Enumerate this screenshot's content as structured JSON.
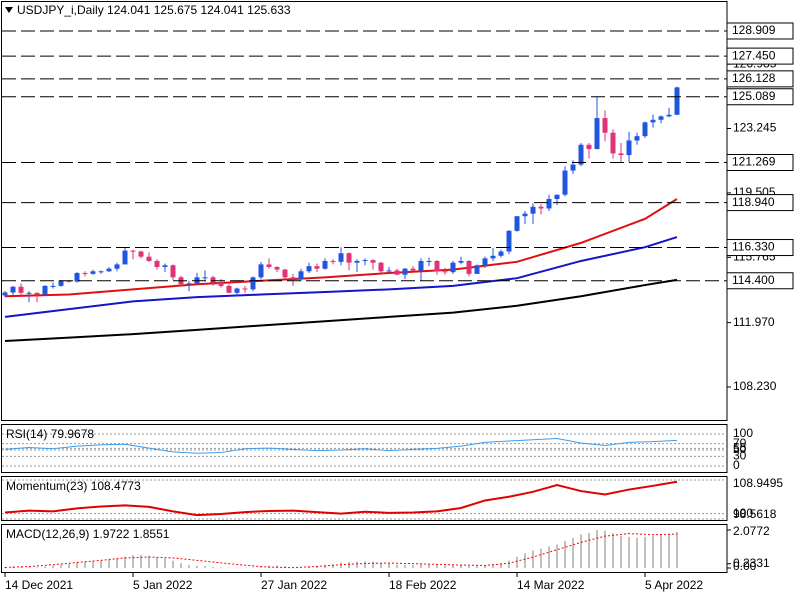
{
  "chart_data": [
    {
      "type": "candlestick",
      "title": "USDJPY_i,Daily  124.041 125.675 124.041 125.633",
      "categories": [
        "14 Dec 2021",
        null,
        null,
        null,
        null,
        null,
        null,
        null,
        null,
        null,
        null,
        null,
        null,
        null,
        null,
        null,
        "5 Jan 2022",
        null,
        null,
        null,
        null,
        null,
        null,
        null,
        null,
        null,
        null,
        null,
        null,
        null,
        null,
        null,
        "27 Jan 2022",
        null,
        null,
        null,
        null,
        null,
        null,
        null,
        null,
        null,
        null,
        null,
        null,
        null,
        null,
        null,
        "18 Feb 2022",
        null,
        null,
        null,
        null,
        null,
        null,
        null,
        null,
        null,
        null,
        null,
        null,
        null,
        null,
        null,
        "14 Mar 2022",
        null,
        null,
        null,
        null,
        null,
        null,
        null,
        null,
        null,
        null,
        null,
        null,
        null,
        null,
        null,
        "5 Apr 2022",
        null,
        null,
        null,
        null
      ],
      "open": [
        113.55,
        113.72,
        114.05,
        113.7,
        113.7,
        113.6,
        114.1,
        114.1,
        114.4,
        114.35,
        114.85,
        114.8,
        114.95,
        114.95,
        115.1,
        115.35,
        116.15,
        116.1,
        115.8,
        115.55,
        115.2,
        115.3,
        114.6,
        114.2,
        114.25,
        114.6,
        114.6,
        114.3,
        114.1,
        113.7,
        113.95,
        113.9,
        114.6,
        115.35,
        115.2,
        115.05,
        114.6,
        114.5,
        114.95,
        115.25,
        115.1,
        115.55,
        115.5,
        116.0,
        115.45,
        115.55,
        115.6,
        115.45,
        114.95,
        115.0,
        114.75,
        115.1,
        115.0,
        115.55,
        115.55,
        114.95,
        114.9,
        115.45,
        115.55,
        114.8,
        115.3,
        115.7,
        115.85,
        116.1,
        117.3,
        118.15,
        118.3,
        118.7,
        118.6,
        119.15,
        119.4,
        120.8,
        121.15,
        122.3,
        122.05,
        123.85,
        123.0,
        121.8,
        121.7,
        122.55,
        122.8,
        123.6,
        123.75,
        123.95,
        124.041
      ],
      "high": [
        113.8,
        114.1,
        114.25,
        113.8,
        113.72,
        114.15,
        114.3,
        114.45,
        114.45,
        114.9,
        114.95,
        115.05,
        115.0,
        115.2,
        115.45,
        116.35,
        116.2,
        116.15,
        116.05,
        115.65,
        115.4,
        115.35,
        114.7,
        114.4,
        114.85,
        115.0,
        114.7,
        114.5,
        114.2,
        114.0,
        114.1,
        114.65,
        115.5,
        115.7,
        115.25,
        115.1,
        114.8,
        115.1,
        115.45,
        115.4,
        115.7,
        115.65,
        116.35,
        116.05,
        115.65,
        115.7,
        115.65,
        115.5,
        115.2,
        115.1,
        115.15,
        115.25,
        115.7,
        115.75,
        115.6,
        115.15,
        115.55,
        115.8,
        115.6,
        115.35,
        115.8,
        116.3,
        116.2,
        117.35,
        118.15,
        118.45,
        118.9,
        118.85,
        119.4,
        119.4,
        121.05,
        121.4,
        122.4,
        122.4,
        125.089,
        124.3,
        123.2,
        122.4,
        123.05,
        123.0,
        123.65,
        124.05,
        124.0,
        124.45,
        125.675
      ],
      "low": [
        113.45,
        113.55,
        113.55,
        113.15,
        113.15,
        113.55,
        113.95,
        114.05,
        114.3,
        114.3,
        114.65,
        114.75,
        114.8,
        114.9,
        114.95,
        115.35,
        115.65,
        115.7,
        115.5,
        115.05,
        114.9,
        114.45,
        114.1,
        113.8,
        114.2,
        114.4,
        114.1,
        114.0,
        113.7,
        113.5,
        113.7,
        113.8,
        114.5,
        115.1,
        114.9,
        114.5,
        114.1,
        114.4,
        114.85,
        114.9,
        115.05,
        115.35,
        115.3,
        115.0,
        114.9,
        115.3,
        115.05,
        114.85,
        114.85,
        114.75,
        114.5,
        114.95,
        114.4,
        115.25,
        114.75,
        114.75,
        114.8,
        115.35,
        114.65,
        114.8,
        115.15,
        115.55,
        115.75,
        115.95,
        117.25,
        117.7,
        117.7,
        118.25,
        118.45,
        118.8,
        119.3,
        120.6,
        121.05,
        121.5,
        122.05,
        122.5,
        121.5,
        121.269,
        121.3,
        122.3,
        122.7,
        123.3,
        123.55,
        123.9,
        124.041
      ],
      "close": [
        113.72,
        114.05,
        113.7,
        113.7,
        113.6,
        114.1,
        114.1,
        114.4,
        114.35,
        114.85,
        114.8,
        114.95,
        114.95,
        115.1,
        115.35,
        116.15,
        116.1,
        115.8,
        115.55,
        115.2,
        115.3,
        114.6,
        114.2,
        114.25,
        114.6,
        114.6,
        114.3,
        114.1,
        113.7,
        113.95,
        113.9,
        114.6,
        115.35,
        115.2,
        115.05,
        114.6,
        114.5,
        114.95,
        115.25,
        115.1,
        115.55,
        115.5,
        116.0,
        115.45,
        115.55,
        115.6,
        115.45,
        114.95,
        115.0,
        114.75,
        115.1,
        115.0,
        115.55,
        115.55,
        114.95,
        114.9,
        115.45,
        115.55,
        114.8,
        115.3,
        115.7,
        115.85,
        116.1,
        117.3,
        118.15,
        118.3,
        118.7,
        118.6,
        119.15,
        119.4,
        120.8,
        121.15,
        122.3,
        122.05,
        123.85,
        123.0,
        121.8,
        121.7,
        122.55,
        122.8,
        123.6,
        123.75,
        123.95,
        124.041,
        125.633
      ],
      "up_color": "#1f55e0",
      "down_color": "#e0317a",
      "ylim": [
        106.312,
        130.535
      ],
      "yticks": [
        126.985,
        123.245,
        119.505,
        115.765,
        {
          "value": 111.97,
          "label": "111.970"
        },
        {
          "value": 108.23,
          "label": "108.230"
        }
      ],
      "levels": [
        128.909,
        {
          "value": 127.45,
          "label": "127.450"
        },
        126.128,
        125.089,
        121.269,
        {
          "value": 118.94,
          "label": "118.940"
        },
        {
          "value": 116.33,
          "label": "116.330"
        },
        {
          "value": 114.4,
          "label": "114.400"
        }
      ],
      "lines": [
        {
          "color": "#e01010",
          "x": [
            0,
            8,
            16,
            24,
            32,
            40,
            48,
            56,
            64,
            72,
            80,
            84
          ],
          "values": [
            113.5,
            113.6,
            113.9,
            114.2,
            114.4,
            114.6,
            114.85,
            115.05,
            115.5,
            116.6,
            118.0,
            119.15
          ]
        },
        {
          "color": "#1414c8",
          "x": [
            0,
            8,
            16,
            24,
            32,
            40,
            48,
            56,
            64,
            72,
            80,
            84
          ],
          "values": [
            112.3,
            112.75,
            113.2,
            113.45,
            113.6,
            113.75,
            113.9,
            114.1,
            114.55,
            115.55,
            116.35,
            116.94
          ]
        },
        {
          "color": "#000000",
          "x": [
            0,
            8,
            16,
            24,
            32,
            40,
            48,
            56,
            64,
            72,
            80,
            84
          ],
          "values": [
            110.9,
            111.1,
            111.3,
            111.55,
            111.8,
            112.05,
            112.3,
            112.55,
            112.95,
            113.5,
            114.15,
            114.45
          ]
        }
      ]
    },
    {
      "type": "line",
      "title": "RSI(14) 79.9678",
      "color": "#3d9be9",
      "x": [
        0,
        3,
        6,
        9,
        12,
        15,
        18,
        21,
        24,
        27,
        30,
        33,
        36,
        39,
        42,
        45,
        48,
        51,
        54,
        57,
        60,
        63,
        66,
        69,
        72,
        75,
        78,
        81,
        84
      ],
      "values": [
        52,
        58,
        54,
        62,
        66,
        68,
        56,
        44,
        40,
        42,
        54,
        56,
        52,
        48,
        50,
        54,
        48,
        52,
        55,
        62,
        74,
        78,
        82,
        86,
        72,
        64,
        74,
        76,
        79.9678
      ],
      "ylim": [
        0,
        100
      ],
      "yticks": [
        0,
        30,
        50,
        55,
        70,
        100
      ],
      "grid": true
    },
    {
      "type": "line",
      "title": "Momentum(23) 108.4773",
      "color": "#e00000",
      "x": [
        0,
        3,
        6,
        9,
        12,
        15,
        18,
        21,
        24,
        27,
        30,
        33,
        36,
        39,
        42,
        45,
        48,
        51,
        54,
        57,
        60,
        63,
        66,
        69,
        72,
        75,
        78,
        81,
        84
      ],
      "values": [
        100.3,
        100.8,
        100.6,
        101.4,
        101.9,
        102.2,
        101.8,
        100.6,
        99.6,
        99.9,
        100.4,
        100.7,
        100.8,
        100.4,
        100,
        100.5,
        100.2,
        100.3,
        100.6,
        101.5,
        103.5,
        104.5,
        105.8,
        107.6,
        106,
        105.1,
        106.4,
        107.4,
        108.4773
      ],
      "ylim": [
        98.5618,
        108.9495
      ],
      "yticks": [
        98.5618,
        100,
        108.9495
      ],
      "grid": true
    },
    {
      "type": "macd",
      "title": "MACD(12,26,9) 1.9722 1.8551",
      "color": "#c0c0c0",
      "values": [
        0.05,
        0.08,
        0.07,
        0.05,
        0.04,
        0.08,
        0.12,
        0.18,
        0.22,
        0.3,
        0.34,
        0.38,
        0.4,
        0.44,
        0.5,
        0.62,
        0.7,
        0.7,
        0.66,
        0.58,
        0.52,
        0.4,
        0.26,
        0.16,
        0.12,
        0.1,
        0.05,
        0.03,
        0.02,
        0.01,
        0.01,
        0.02,
        0.05,
        0.12,
        0.14,
        0.1,
        0.05,
        0.06,
        0.1,
        0.12,
        0.18,
        0.22,
        0.3,
        0.32,
        0.34,
        0.35,
        0.34,
        0.28,
        0.24,
        0.18,
        0.18,
        0.16,
        0.2,
        0.22,
        0.16,
        0.12,
        0.14,
        0.16,
        0.1,
        0.1,
        0.14,
        0.2,
        0.26,
        0.4,
        0.62,
        0.8,
        0.96,
        1.06,
        1.18,
        1.28,
        1.48,
        1.64,
        1.84,
        1.92,
        2.0772,
        2.04,
        1.9,
        1.76,
        1.7,
        1.66,
        1.7,
        1.76,
        1.82,
        1.88,
        1.9722
      ],
      "signal": {
        "color": "#ff0000",
        "x": [
          0,
          3,
          6,
          9,
          12,
          15,
          18,
          21,
          24,
          27,
          30,
          33,
          36,
          39,
          42,
          45,
          48,
          51,
          54,
          57,
          60,
          63,
          66,
          69,
          72,
          75,
          78,
          81,
          84
        ],
        "values": [
          0.03,
          0.08,
          0.18,
          0.3,
          0.42,
          0.55,
          0.6,
          0.55,
          0.42,
          0.28,
          0.15,
          0.05,
          0.02,
          0.08,
          0.18,
          0.25,
          0.27,
          0.24,
          0.2,
          0.16,
          0.14,
          0.26,
          0.6,
          1.0,
          1.4,
          1.74,
          1.88,
          1.82,
          1.8551
        ]
      },
      "ylim": [
        0,
        2.0772
      ],
      "yticks": [
        {
          "value": 0,
          "label": "0.00"
        },
        0.2331,
        2.0772
      ],
      "grid": false
    }
  ]
}
